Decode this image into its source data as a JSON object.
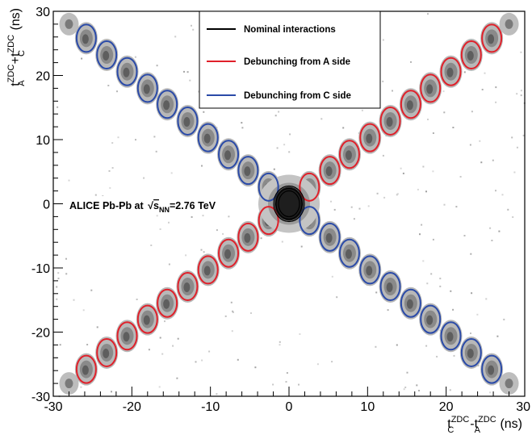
{
  "chart_data": {
    "type": "scatter",
    "title": "",
    "xlabel": {
      "base": "t",
      "sub1": "C",
      "sup1": "ZDC",
      "mid": "-t",
      "sub2": "A",
      "sup2": "ZDC",
      "unit": " (ns)"
    },
    "ylabel": {
      "base": "t",
      "sub1": "A",
      "sup1": "ZDC",
      "mid": "+t",
      "sub2": "C",
      "sup2": "ZDC",
      "unit": " (ns)"
    },
    "xlim": [
      -30,
      30
    ],
    "ylim": [
      -30,
      30
    ],
    "x_ticks": [
      -30,
      -20,
      -10,
      0,
      10,
      20,
      30
    ],
    "y_ticks": [
      -30,
      -20,
      -10,
      0,
      10,
      20,
      30
    ],
    "grid": false,
    "legend_position": "top-center",
    "annotation": {
      "prefix": "ALICE Pb-Pb at ",
      "sqrt": "√",
      "s": "s",
      "sub": "NN",
      "suffix": "=2.76 TeV"
    },
    "series": [
      {
        "name": "Nominal interactions",
        "color": "#000000",
        "points": [
          [
            0,
            0
          ]
        ]
      },
      {
        "name": "Debunching from A side",
        "color": "#e0202a",
        "points": [
          [
            -25.8,
            -25.8
          ],
          [
            -23.2,
            -23.2
          ],
          [
            -20.6,
            -20.6
          ],
          [
            -18.0,
            -18.0
          ],
          [
            -15.5,
            -15.5
          ],
          [
            -12.9,
            -12.9
          ],
          [
            -10.3,
            -10.3
          ],
          [
            -7.7,
            -7.7
          ],
          [
            -5.2,
            -5.2
          ],
          [
            -2.6,
            -2.6
          ],
          [
            2.6,
            2.6
          ],
          [
            5.2,
            5.2
          ],
          [
            7.7,
            7.7
          ],
          [
            10.3,
            10.3
          ],
          [
            12.9,
            12.9
          ],
          [
            15.5,
            15.5
          ],
          [
            18.0,
            18.0
          ],
          [
            20.6,
            20.6
          ],
          [
            23.2,
            23.2
          ],
          [
            25.8,
            25.8
          ]
        ]
      },
      {
        "name": "Debunching from C side",
        "color": "#2a4aa8",
        "points": [
          [
            -25.8,
            25.8
          ],
          [
            -23.2,
            23.2
          ],
          [
            -20.6,
            20.6
          ],
          [
            -18.0,
            18.0
          ],
          [
            -15.5,
            15.5
          ],
          [
            -12.9,
            12.9
          ],
          [
            -10.3,
            10.3
          ],
          [
            -7.7,
            7.7
          ],
          [
            -5.2,
            5.2
          ],
          [
            -2.6,
            2.6
          ],
          [
            2.6,
            -2.6
          ],
          [
            5.2,
            -5.2
          ],
          [
            7.7,
            -7.7
          ],
          [
            10.3,
            -10.3
          ],
          [
            12.9,
            -12.9
          ],
          [
            15.5,
            -15.5
          ],
          [
            18.0,
            -18.0
          ],
          [
            20.6,
            -20.6
          ],
          [
            23.2,
            -23.2
          ],
          [
            25.8,
            -25.8
          ]
        ]
      }
    ]
  }
}
